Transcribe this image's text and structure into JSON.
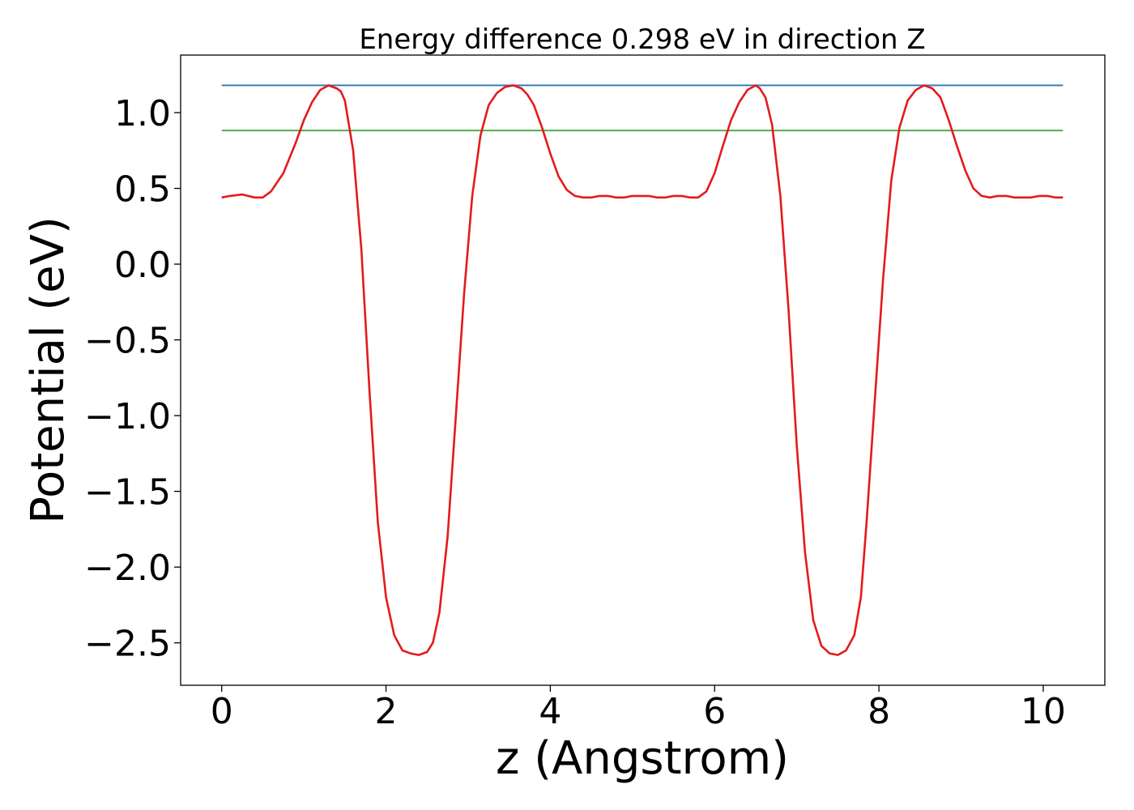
{
  "chart_data": {
    "type": "line",
    "title": "Energy difference 0.298 eV in direction Z",
    "xlabel": "z (Angstrom)",
    "ylabel": "Potential (eV)",
    "xlim": [
      -0.5,
      10.75
    ],
    "ylim": [
      -2.78,
      1.38
    ],
    "x_ticks": [
      0,
      2,
      4,
      6,
      8,
      10
    ],
    "x_tick_labels": [
      "0",
      "2",
      "4",
      "6",
      "8",
      "10"
    ],
    "y_ticks": [
      1.0,
      0.5,
      0.0,
      -0.5,
      -1.0,
      -1.5,
      -2.0,
      -2.5
    ],
    "y_tick_labels": [
      "1.0",
      "0.5",
      "0.0",
      "−0.5",
      "−1.0",
      "−1.5",
      "−2.0",
      "−2.5"
    ],
    "grid": false,
    "legend": "none",
    "series": [
      {
        "color": "#e41a1c",
        "x": [
          0.0,
          0.1,
          0.25,
          0.4,
          0.5,
          0.6,
          0.75,
          0.9,
          1.0,
          1.1,
          1.2,
          1.3,
          1.4,
          1.45,
          1.5,
          1.6,
          1.7,
          1.8,
          1.9,
          2.0,
          2.1,
          2.2,
          2.3,
          2.4,
          2.5,
          2.57,
          2.65,
          2.75,
          2.85,
          2.95,
          3.05,
          3.15,
          3.25,
          3.35,
          3.45,
          3.55,
          3.65,
          3.72,
          3.8,
          3.9,
          4.0,
          4.1,
          4.2,
          4.3,
          4.4,
          4.5,
          4.6,
          4.7,
          4.8,
          4.9,
          5.0,
          5.1,
          5.2,
          5.3,
          5.4,
          5.5,
          5.6,
          5.7,
          5.8,
          5.9,
          6.0,
          6.1,
          6.2,
          6.3,
          6.4,
          6.5,
          6.55,
          6.62,
          6.7,
          6.8,
          6.9,
          7.0,
          7.1,
          7.2,
          7.3,
          7.4,
          7.5,
          7.6,
          7.7,
          7.78,
          7.85,
          7.95,
          8.05,
          8.15,
          8.25,
          8.35,
          8.45,
          8.55,
          8.65,
          8.75,
          8.85,
          8.95,
          9.05,
          9.15,
          9.25,
          9.35,
          9.45,
          9.55,
          9.65,
          9.75,
          9.85,
          9.95,
          10.05,
          10.15,
          10.24
        ],
        "y": [
          0.44,
          0.45,
          0.46,
          0.44,
          0.44,
          0.48,
          0.6,
          0.8,
          0.95,
          1.07,
          1.15,
          1.18,
          1.16,
          1.14,
          1.08,
          0.75,
          0.1,
          -0.85,
          -1.7,
          -2.2,
          -2.45,
          -2.55,
          -2.57,
          -2.58,
          -2.56,
          -2.5,
          -2.3,
          -1.8,
          -1.0,
          -0.2,
          0.45,
          0.85,
          1.05,
          1.13,
          1.17,
          1.18,
          1.16,
          1.12,
          1.05,
          0.9,
          0.73,
          0.58,
          0.49,
          0.45,
          0.44,
          0.44,
          0.45,
          0.45,
          0.44,
          0.44,
          0.45,
          0.45,
          0.45,
          0.44,
          0.44,
          0.45,
          0.45,
          0.44,
          0.44,
          0.48,
          0.6,
          0.78,
          0.95,
          1.07,
          1.15,
          1.18,
          1.16,
          1.1,
          0.92,
          0.45,
          -0.3,
          -1.2,
          -1.9,
          -2.35,
          -2.52,
          -2.57,
          -2.58,
          -2.55,
          -2.45,
          -2.2,
          -1.7,
          -0.9,
          -0.1,
          0.55,
          0.9,
          1.08,
          1.15,
          1.18,
          1.16,
          1.1,
          0.95,
          0.78,
          0.62,
          0.5,
          0.45,
          0.44,
          0.45,
          0.45,
          0.44,
          0.44,
          0.44,
          0.45,
          0.45,
          0.44,
          0.44
        ]
      },
      {
        "color": "#377eb8",
        "x": [
          0.0,
          10.24
        ],
        "y": [
          1.18,
          1.18
        ]
      },
      {
        "color": "#4daf4a",
        "x": [
          0.0,
          10.24
        ],
        "y": [
          0.882,
          0.882
        ]
      }
    ]
  }
}
